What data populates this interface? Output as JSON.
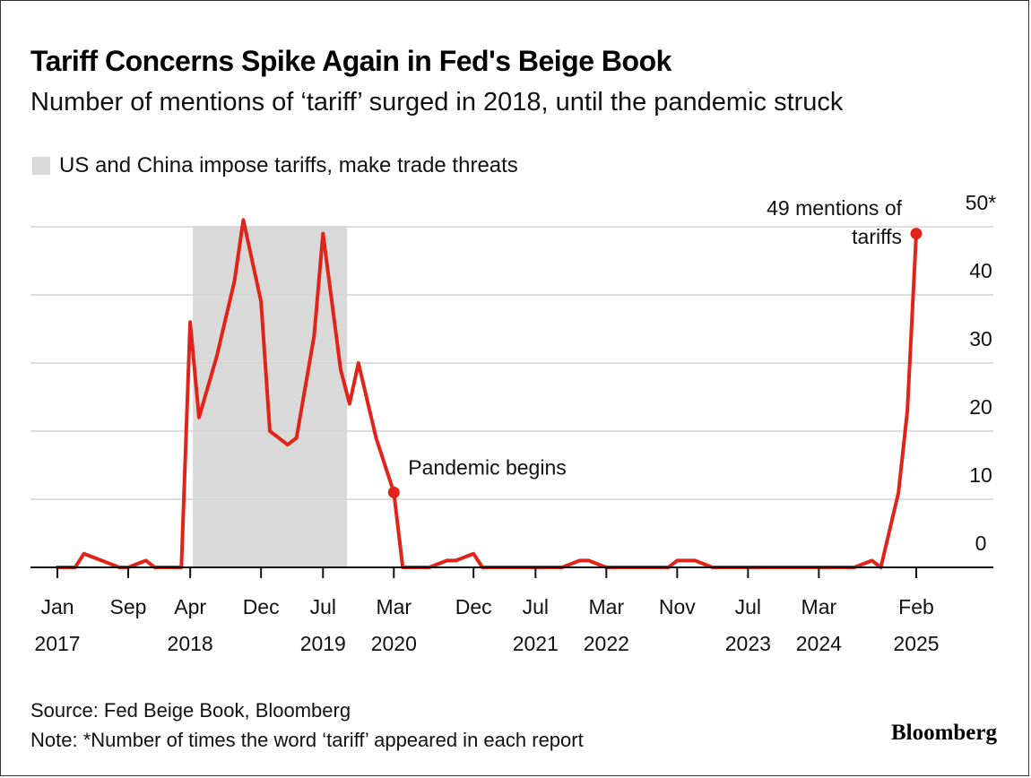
{
  "chart_data": {
    "type": "line",
    "title": "Tariff Concerns Spike Again in Fed's Beige Book",
    "subtitle": "Number of mentions of ‘tariff’ surged in 2018, until the pandemic struck",
    "legend": [
      {
        "label": "US and China impose tariffs, make trade threats",
        "color": "#d9d9d9"
      }
    ],
    "shaded_region": {
      "start": "2018-04",
      "end": "2019-09",
      "label": "US and China impose tariffs, make trade threats"
    },
    "ylim": [
      0,
      50
    ],
    "y_ticks": [
      {
        "value": 0,
        "label": "0"
      },
      {
        "value": 10,
        "label": "10"
      },
      {
        "value": 20,
        "label": "20"
      },
      {
        "value": 30,
        "label": "30"
      },
      {
        "value": 40,
        "label": "40"
      },
      {
        "value": 50,
        "label": "50*"
      }
    ],
    "x_ticks": [
      {
        "date": "2017-01",
        "month": "Jan",
        "year": "2017"
      },
      {
        "date": "2017-09",
        "month": "Sep",
        "year": ""
      },
      {
        "date": "2018-04",
        "month": "Apr",
        "year": "2018"
      },
      {
        "date": "2018-12",
        "month": "Dec",
        "year": ""
      },
      {
        "date": "2019-07",
        "month": "Jul",
        "year": "2019"
      },
      {
        "date": "2020-03",
        "month": "Mar",
        "year": "2020"
      },
      {
        "date": "2020-12",
        "month": "Dec",
        "year": ""
      },
      {
        "date": "2021-07",
        "month": "Jul",
        "year": "2021"
      },
      {
        "date": "2022-03",
        "month": "Mar",
        "year": "2022"
      },
      {
        "date": "2022-11",
        "month": "Nov",
        "year": ""
      },
      {
        "date": "2023-07",
        "month": "Jul",
        "year": "2023"
      },
      {
        "date": "2024-03",
        "month": "Mar",
        "year": "2024"
      },
      {
        "date": "2025-02",
        "month": "Feb",
        "year": "2025"
      }
    ],
    "series": [
      {
        "color": "#e2231a",
        "points": [
          {
            "date": "2017-01",
            "value": 0
          },
          {
            "date": "2017-03",
            "value": 0
          },
          {
            "date": "2017-04",
            "value": 2
          },
          {
            "date": "2017-06",
            "value": 1
          },
          {
            "date": "2017-08",
            "value": 0
          },
          {
            "date": "2017-09",
            "value": 0
          },
          {
            "date": "2017-11",
            "value": 1
          },
          {
            "date": "2017-12",
            "value": 0
          },
          {
            "date": "2018-03",
            "value": 0
          },
          {
            "date": "2018-04",
            "value": 36
          },
          {
            "date": "2018-05",
            "value": 22
          },
          {
            "date": "2018-07",
            "value": 31
          },
          {
            "date": "2018-09",
            "value": 42
          },
          {
            "date": "2018-10",
            "value": 51
          },
          {
            "date": "2018-12",
            "value": 39
          },
          {
            "date": "2019-01",
            "value": 20
          },
          {
            "date": "2019-03",
            "value": 18
          },
          {
            "date": "2019-04",
            "value": 19
          },
          {
            "date": "2019-06",
            "value": 34
          },
          {
            "date": "2019-07",
            "value": 49
          },
          {
            "date": "2019-09",
            "value": 29
          },
          {
            "date": "2019-10",
            "value": 24
          },
          {
            "date": "2019-11",
            "value": 30
          },
          {
            "date": "2020-01",
            "value": 19
          },
          {
            "date": "2020-03",
            "value": 11
          },
          {
            "date": "2020-04",
            "value": 0
          },
          {
            "date": "2020-07",
            "value": 0
          },
          {
            "date": "2020-09",
            "value": 1
          },
          {
            "date": "2020-10",
            "value": 1
          },
          {
            "date": "2020-12",
            "value": 2
          },
          {
            "date": "2021-01",
            "value": 0
          },
          {
            "date": "2021-10",
            "value": 0
          },
          {
            "date": "2021-12",
            "value": 1
          },
          {
            "date": "2022-01",
            "value": 1
          },
          {
            "date": "2022-03",
            "value": 0
          },
          {
            "date": "2022-10",
            "value": 0
          },
          {
            "date": "2022-11",
            "value": 1
          },
          {
            "date": "2023-01",
            "value": 1
          },
          {
            "date": "2023-03",
            "value": 0
          },
          {
            "date": "2024-07",
            "value": 0
          },
          {
            "date": "2024-09",
            "value": 1
          },
          {
            "date": "2024-10",
            "value": 0
          },
          {
            "date": "2024-12",
            "value": 11
          },
          {
            "date": "2025-01",
            "value": 23
          },
          {
            "date": "2025-02",
            "value": 49
          }
        ]
      }
    ],
    "annotations": [
      {
        "date": "2020-03",
        "value": 11,
        "lines": [
          "Pandemic begins"
        ],
        "marker": true
      },
      {
        "date": "2025-02",
        "value": 49,
        "lines": [
          "49 mentions of",
          "tariffs"
        ],
        "marker": true
      }
    ],
    "grid": true
  },
  "source": "Source: Fed Beige Book, Bloomberg",
  "note": "Note: *Number of times the word ‘tariff’ appeared in each report",
  "brand": "Bloomberg"
}
